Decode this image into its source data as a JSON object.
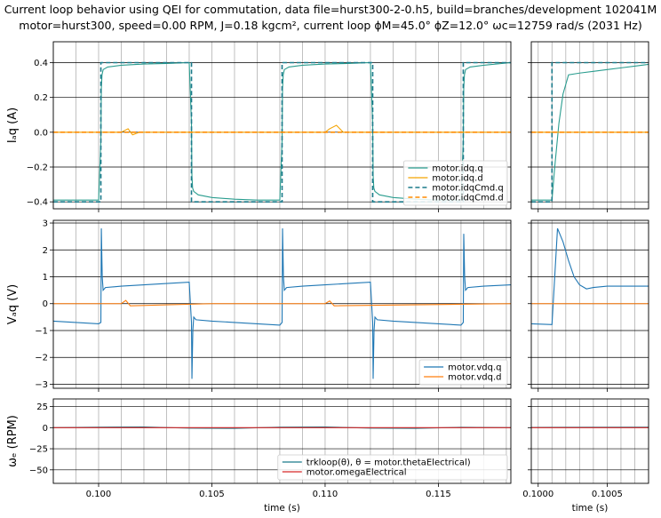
{
  "figure": {
    "title_line1": "Current loop behavior using QEI for commutation, data file=hurst300-2-0.h5, build=branches/development 102041M",
    "title_line2": "motor=hurst300, speed=0.00 RPM, J=0.18 kgcm², current loop ϕM=45.0° ϕZ=12.0° ωc=12759 rad/s (2031 Hz)"
  },
  "chart_data": [
    {
      "type": "line",
      "panel": "current-main",
      "ylabel": "Iₐq (A)",
      "xlim": [
        0.098,
        0.1182
      ],
      "ylim": [
        -0.44,
        0.52
      ],
      "yticks": [
        -0.4,
        -0.2,
        0.0,
        0.2,
        0.4
      ],
      "ytick_labels": [
        "−0.4",
        "−0.2",
        "0.0",
        "0.2",
        "0.4"
      ],
      "xticks": [
        0.1,
        0.105,
        0.11,
        0.115
      ],
      "grid": true,
      "legend_position": "lower-right",
      "series": [
        {
          "name": "motor.idq.q",
          "color": "#2a9d8f",
          "style": "solid",
          "x": [
            0.098,
            0.1,
            0.1001,
            0.10012,
            0.10015,
            0.1002,
            0.1004,
            0.101,
            0.102,
            0.103,
            0.104,
            0.1041,
            0.10412,
            0.10415,
            0.1042,
            0.1044,
            0.105,
            0.106,
            0.107,
            0.108,
            0.1081,
            0.10812,
            0.10815,
            0.1082,
            0.1084,
            0.109,
            0.11,
            0.111,
            0.112,
            0.1121,
            0.11212,
            0.11215,
            0.1122,
            0.1124,
            0.113,
            0.114,
            0.115,
            0.116,
            0.1161,
            0.11612,
            0.11615,
            0.1162,
            0.1164,
            0.117,
            0.1182
          ],
          "y": [
            -0.39,
            -0.39,
            -0.05,
            0.25,
            0.33,
            0.36,
            0.375,
            0.385,
            0.392,
            0.395,
            0.4,
            0.05,
            -0.25,
            -0.32,
            -0.34,
            -0.36,
            -0.375,
            -0.385,
            -0.39,
            -0.39,
            -0.05,
            0.25,
            0.33,
            0.36,
            0.375,
            0.385,
            0.392,
            0.395,
            0.4,
            0.05,
            -0.25,
            -0.32,
            -0.34,
            -0.36,
            -0.375,
            -0.385,
            -0.39,
            -0.39,
            -0.05,
            0.25,
            0.33,
            0.36,
            0.375,
            0.385,
            0.4
          ]
        },
        {
          "name": "motor.idq.d",
          "color": "#f4a300",
          "style": "solid",
          "x": [
            0.098,
            0.101,
            0.1013,
            0.1015,
            0.1018,
            0.105,
            0.11,
            0.1102,
            0.1105,
            0.1108,
            0.1182
          ],
          "y": [
            0.0,
            0.0,
            0.02,
            -0.015,
            0.0,
            0.0,
            0.0,
            0.02,
            0.04,
            0.0,
            0.0
          ]
        },
        {
          "name": "motor.idqCmd.q",
          "color": "#1a7a8a",
          "style": "dashed",
          "x": [
            0.098,
            0.1001,
            0.1001,
            0.1041,
            0.1041,
            0.1081,
            0.1081,
            0.1121,
            0.1121,
            0.1161,
            0.1161,
            0.1182
          ],
          "y": [
            -0.4,
            -0.4,
            0.4,
            0.4,
            -0.4,
            -0.4,
            0.4,
            0.4,
            -0.4,
            -0.4,
            0.4,
            0.4
          ]
        },
        {
          "name": "motor.idqCmd.d",
          "color": "#ff8c00",
          "style": "dashed",
          "x": [
            0.098,
            0.1182
          ],
          "y": [
            0.0,
            0.0
          ]
        }
      ]
    },
    {
      "type": "line",
      "panel": "current-zoom",
      "xlim": [
        0.09995,
        0.1008
      ],
      "ylim": [
        -0.44,
        0.52
      ],
      "xticks": [
        0.1,
        0.1005
      ],
      "grid": true,
      "series": [
        {
          "name": "motor.idq.q",
          "color": "#2a9d8f",
          "style": "solid",
          "x": [
            0.09995,
            0.1001,
            0.10012,
            0.10015,
            0.10018,
            0.10022,
            0.1003,
            0.1004,
            0.1005,
            0.1006,
            0.1007,
            0.1008
          ],
          "y": [
            -0.39,
            -0.39,
            -0.2,
            0.05,
            0.22,
            0.33,
            0.34,
            0.35,
            0.36,
            0.37,
            0.38,
            0.39
          ]
        },
        {
          "name": "motor.idq.d",
          "color": "#f4a300",
          "style": "solid",
          "x": [
            0.09995,
            0.1008
          ],
          "y": [
            0.0,
            0.0
          ]
        },
        {
          "name": "motor.idqCmd.q",
          "color": "#1a7a8a",
          "style": "dashed",
          "x": [
            0.09995,
            0.1001,
            0.1001,
            0.1008
          ],
          "y": [
            -0.4,
            -0.4,
            0.4,
            0.4
          ]
        },
        {
          "name": "motor.idqCmd.d",
          "color": "#ff8c00",
          "style": "dashed",
          "x": [
            0.09995,
            0.1008
          ],
          "y": [
            0.0,
            0.0
          ]
        }
      ]
    },
    {
      "type": "line",
      "panel": "voltage-main",
      "ylabel": "Vₐq (V)",
      "xlim": [
        0.098,
        0.1182
      ],
      "ylim": [
        -3.15,
        3.1
      ],
      "yticks": [
        -3,
        -2,
        -1,
        0,
        1,
        2,
        3
      ],
      "ytick_labels": [
        "−3",
        "−2",
        "−1",
        "0",
        "1",
        "2",
        "3"
      ],
      "xticks": [
        0.1,
        0.105,
        0.11,
        0.115
      ],
      "grid": true,
      "legend_position": "lower-right",
      "series": [
        {
          "name": "motor.vdq.q",
          "color": "#1f77b4",
          "style": "solid",
          "x": [
            0.098,
            0.1,
            0.1001,
            0.10012,
            0.10016,
            0.1002,
            0.1003,
            0.101,
            0.102,
            0.103,
            0.104,
            0.1041,
            0.10412,
            0.10416,
            0.1042,
            0.1043,
            0.105,
            0.106,
            0.107,
            0.108,
            0.1081,
            0.10812,
            0.10816,
            0.1082,
            0.1083,
            0.109,
            0.11,
            0.111,
            0.112,
            0.1121,
            0.11212,
            0.11216,
            0.1122,
            0.1123,
            0.113,
            0.114,
            0.115,
            0.116,
            0.1161,
            0.11612,
            0.11616,
            0.1162,
            0.1163,
            0.117,
            0.1182
          ],
          "y": [
            -0.65,
            -0.75,
            -0.7,
            2.8,
            1.0,
            0.5,
            0.6,
            0.65,
            0.7,
            0.75,
            0.8,
            -0.7,
            -2.8,
            -1.0,
            -0.5,
            -0.6,
            -0.65,
            -0.7,
            -0.75,
            -0.8,
            -0.7,
            2.8,
            1.0,
            0.5,
            0.6,
            0.65,
            0.7,
            0.75,
            0.8,
            -0.7,
            -2.8,
            -1.0,
            -0.5,
            -0.6,
            -0.65,
            -0.7,
            -0.75,
            -0.8,
            -0.7,
            2.6,
            1.0,
            0.5,
            0.6,
            0.65,
            0.7
          ]
        },
        {
          "name": "motor.vdq.d",
          "color": "#ff7f0e",
          "style": "solid",
          "x": [
            0.098,
            0.101,
            0.1012,
            0.1014,
            0.105,
            0.11,
            0.1102,
            0.1104,
            0.1182
          ],
          "y": [
            0.0,
            0.0,
            0.12,
            -0.08,
            0.0,
            0.0,
            0.1,
            -0.08,
            0.0
          ]
        }
      ]
    },
    {
      "type": "line",
      "panel": "voltage-zoom",
      "xlim": [
        0.09995,
        0.1008
      ],
      "ylim": [
        -3.15,
        3.1
      ],
      "xticks": [
        0.1,
        0.1005
      ],
      "grid": true,
      "series": [
        {
          "name": "motor.vdq.q",
          "color": "#1f77b4",
          "style": "solid",
          "x": [
            0.09995,
            0.1001,
            0.10014,
            0.10018,
            0.10022,
            0.10026,
            0.1003,
            0.10035,
            0.1004,
            0.1005,
            0.1006,
            0.1007,
            0.1008
          ],
          "y": [
            -0.75,
            -0.78,
            2.8,
            2.3,
            1.6,
            1.0,
            0.7,
            0.55,
            0.6,
            0.65,
            0.65,
            0.65,
            0.65
          ]
        },
        {
          "name": "motor.vdq.d",
          "color": "#ff7f0e",
          "style": "solid",
          "x": [
            0.09995,
            0.1008
          ],
          "y": [
            0.0,
            0.0
          ]
        }
      ]
    },
    {
      "type": "line",
      "panel": "speed-main",
      "ylabel": "ωₑ (RPM)",
      "xlabel": "time (s)",
      "xlim": [
        0.098,
        0.1182
      ],
      "ylim": [
        -66,
        34
      ],
      "yticks": [
        -50,
        -25,
        0,
        25
      ],
      "ytick_labels": [
        "−50",
        "−25",
        "0",
        "25"
      ],
      "xticks": [
        0.1,
        0.105,
        0.11,
        0.115
      ],
      "xtick_labels": [
        "0.100",
        "0.105",
        "0.110",
        "0.115"
      ],
      "grid": true,
      "legend_position": "lower-right",
      "series": [
        {
          "name": "trkloop(θ), θ = motor.thetaElectrical)",
          "color": "#1a7a8a",
          "style": "solid",
          "x": [
            0.098,
            0.1,
            0.102,
            0.104,
            0.106,
            0.108,
            0.11,
            0.112,
            0.114,
            0.116,
            0.1182
          ],
          "y": [
            0.0,
            0.5,
            0.8,
            -0.6,
            -0.8,
            0.5,
            0.8,
            -0.5,
            -0.8,
            0.4,
            0.0
          ]
        },
        {
          "name": "motor.omegaElectrical",
          "color": "#d62728",
          "style": "solid",
          "x": [
            0.098,
            0.1182
          ],
          "y": [
            0.0,
            0.0
          ]
        }
      ]
    },
    {
      "type": "line",
      "panel": "speed-zoom",
      "xlabel": "time (s)",
      "xlim": [
        0.09995,
        0.1008
      ],
      "ylim": [
        -66,
        34
      ],
      "xticks": [
        0.1,
        0.1005
      ],
      "xtick_labels": [
        "0.1000",
        "0.1005"
      ],
      "grid": true,
      "series": [
        {
          "name": "trkloop(θ), θ = motor.thetaElectrical)",
          "color": "#1a7a8a",
          "style": "solid",
          "x": [
            0.09995,
            0.1008
          ],
          "y": [
            0.3,
            0.5
          ]
        },
        {
          "name": "motor.omegaElectrical",
          "color": "#d62728",
          "style": "solid",
          "x": [
            0.09995,
            0.1008
          ],
          "y": [
            0.0,
            0.0
          ]
        }
      ]
    }
  ]
}
